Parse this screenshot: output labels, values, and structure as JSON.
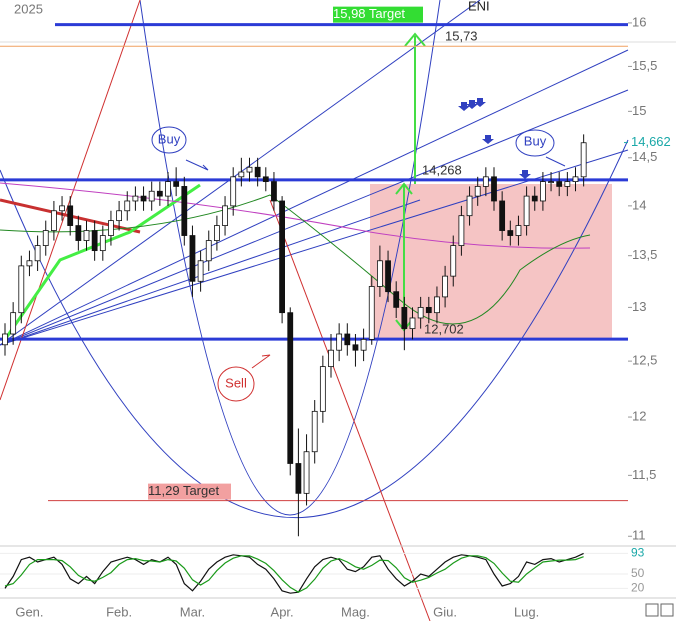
{
  "chart_data": {
    "type": "candlestick",
    "title": "ENI",
    "subtitle": "2025",
    "log_scale": true,
    "categories": [
      null,
      null,
      null,
      "Gen.",
      null,
      null,
      null,
      null,
      null,
      null,
      null,
      null,
      null,
      null,
      "Feb.",
      null,
      null,
      null,
      null,
      null,
      null,
      null,
      null,
      "Mar.",
      null,
      null,
      null,
      null,
      null,
      null,
      null,
      null,
      null,
      null,
      "Apr.",
      null,
      null,
      null,
      null,
      null,
      null,
      null,
      null,
      "Mag.",
      null,
      null,
      null,
      null,
      null,
      null,
      null,
      null,
      null,
      null,
      "Giu.",
      null,
      null,
      null,
      null,
      null,
      null,
      null,
      null,
      null,
      "Lug.",
      null,
      null,
      null,
      null,
      null,
      null,
      null
    ],
    "open": [
      12.65,
      12.75,
      12.95,
      13.4,
      13.45,
      13.6,
      13.75,
      13.95,
      14.0,
      13.8,
      13.65,
      13.75,
      13.55,
      13.7,
      13.85,
      13.95,
      14.05,
      14.1,
      14.05,
      14.15,
      14.1,
      14.25,
      14.2,
      13.7,
      13.25,
      13.45,
      13.65,
      13.8,
      14.0,
      14.3,
      14.35,
      14.4,
      14.3,
      14.25,
      14.05,
      12.95,
      11.6,
      11.35,
      11.7,
      12.05,
      12.45,
      12.6,
      12.75,
      12.65,
      12.6,
      12.7,
      13.2,
      13.45,
      13.15,
      13.0,
      12.8,
      12.9,
      13.0,
      12.95,
      13.1,
      13.3,
      13.6,
      13.9,
      14.1,
      14.2,
      14.3,
      14.05,
      13.75,
      13.7,
      13.8,
      14.1,
      14.05,
      14.25,
      14.25,
      14.2,
      14.25,
      14.3
    ],
    "high": [
      12.85,
      13.05,
      13.5,
      13.55,
      13.7,
      13.85,
      14.05,
      14.1,
      14.1,
      13.9,
      13.85,
      13.85,
      13.8,
      13.95,
      14.05,
      14.15,
      14.2,
      14.2,
      14.25,
      14.25,
      14.35,
      14.4,
      14.3,
      13.8,
      13.55,
      13.75,
      13.9,
      14.1,
      14.4,
      14.5,
      14.5,
      14.5,
      14.4,
      14.35,
      14.1,
      13.0,
      11.9,
      11.85,
      12.15,
      12.55,
      12.75,
      12.85,
      12.85,
      12.75,
      12.8,
      13.3,
      13.6,
      13.55,
      13.25,
      13.1,
      13.0,
      13.1,
      13.1,
      13.2,
      13.4,
      13.7,
      14.0,
      14.2,
      14.3,
      14.4,
      14.4,
      14.15,
      13.85,
      13.9,
      14.2,
      14.2,
      14.35,
      14.35,
      14.35,
      14.35,
      14.4,
      14.75
    ],
    "low": [
      12.55,
      12.65,
      12.85,
      13.3,
      13.35,
      13.5,
      13.65,
      13.85,
      13.7,
      13.55,
      13.55,
      13.45,
      13.45,
      13.6,
      13.75,
      13.85,
      13.95,
      13.95,
      13.95,
      14.0,
      14.0,
      14.1,
      13.6,
      13.1,
      13.15,
      13.35,
      13.55,
      13.7,
      13.9,
      14.2,
      14.25,
      14.2,
      14.15,
      13.95,
      12.85,
      11.5,
      11.0,
      11.25,
      11.6,
      11.95,
      12.35,
      12.5,
      12.55,
      12.45,
      12.5,
      12.65,
      13.1,
      13.05,
      12.9,
      12.6,
      12.7,
      12.8,
      12.85,
      12.85,
      13.0,
      13.2,
      13.5,
      13.8,
      14.0,
      14.1,
      13.95,
      13.65,
      13.6,
      13.6,
      13.7,
      13.95,
      13.95,
      14.15,
      14.1,
      14.1,
      14.15,
      14.2
    ],
    "close": [
      12.75,
      12.95,
      13.4,
      13.45,
      13.6,
      13.75,
      13.95,
      14.0,
      13.8,
      13.65,
      13.75,
      13.55,
      13.7,
      13.85,
      13.95,
      14.05,
      14.1,
      14.05,
      14.15,
      14.1,
      14.25,
      14.2,
      13.7,
      13.25,
      13.45,
      13.65,
      13.8,
      14.0,
      14.3,
      14.35,
      14.4,
      14.3,
      14.25,
      14.05,
      12.95,
      11.6,
      11.35,
      11.7,
      12.05,
      12.45,
      12.6,
      12.75,
      12.65,
      12.6,
      12.7,
      13.2,
      13.45,
      13.15,
      13.0,
      12.8,
      12.9,
      13.0,
      12.95,
      13.1,
      13.3,
      13.6,
      13.9,
      14.1,
      14.2,
      14.3,
      14.05,
      13.75,
      13.7,
      13.8,
      14.1,
      14.05,
      14.25,
      14.25,
      14.2,
      14.25,
      14.3,
      14.66
    ],
    "ylim": [
      10.93,
      16.27
    ],
    "yticks": [
      11,
      {
        "value": 11.5,
        "label": "11,5"
      },
      12,
      {
        "value": 12.5,
        "label": "12,5"
      },
      13,
      {
        "value": 13.5,
        "label": "13,5"
      },
      14,
      {
        "value": 14.5,
        "label": "14,5"
      },
      15,
      {
        "value": 15.5,
        "label": "15,5"
      },
      16
    ],
    "last_price": {
      "value": 14.662,
      "label": "14,662"
    },
    "levels": [
      {
        "value": 15.98,
        "label": "15,98 Target",
        "color": "#2b3bd6"
      },
      {
        "value": 15.73,
        "label": "15,73",
        "color": "#f0a060"
      },
      {
        "value": 14.268,
        "label": "14,268",
        "color": "#2b3bd6"
      },
      {
        "value": 12.702,
        "label": "12,702",
        "color": "#2b3bd6"
      },
      {
        "value": 11.29,
        "label": "11,29 Target",
        "color": "#d04040"
      }
    ],
    "annotations": [
      "Buy",
      "Buy",
      "Sell"
    ],
    "oscillator": {
      "ylim": [
        0,
        100
      ],
      "yticks": [
        20,
        50,
        93
      ],
      "series": [
        {
          "color": "#111111",
          "values": [
            20,
            45,
            80,
            85,
            75,
            80,
            85,
            70,
            40,
            30,
            45,
            30,
            55,
            75,
            80,
            85,
            80,
            70,
            80,
            75,
            85,
            70,
            30,
            15,
            35,
            60,
            75,
            85,
            90,
            88,
            85,
            70,
            60,
            40,
            15,
            10,
            12,
            40,
            65,
            80,
            85,
            80,
            60,
            55,
            65,
            85,
            88,
            60,
            40,
            25,
            35,
            50,
            45,
            60,
            75,
            85,
            90,
            88,
            85,
            80,
            50,
            25,
            30,
            45,
            75,
            70,
            80,
            82,
            75,
            80,
            85,
            93
          ]
        },
        {
          "color": "#1a9a1a",
          "values": [
            25,
            30,
            48,
            70,
            80,
            80,
            80,
            78,
            65,
            47,
            38,
            35,
            43,
            53,
            70,
            80,
            82,
            78,
            77,
            75,
            80,
            77,
            62,
            38,
            27,
            37,
            57,
            73,
            83,
            88,
            88,
            81,
            72,
            57,
            38,
            22,
            12,
            21,
            39,
            62,
            77,
            82,
            75,
            65,
            60,
            68,
            79,
            78,
            63,
            42,
            33,
            37,
            43,
            52,
            60,
            73,
            83,
            88,
            88,
            84,
            72,
            52,
            35,
            33,
            50,
            63,
            75,
            77,
            79,
            79,
            80,
            86
          ]
        }
      ]
    }
  }
}
